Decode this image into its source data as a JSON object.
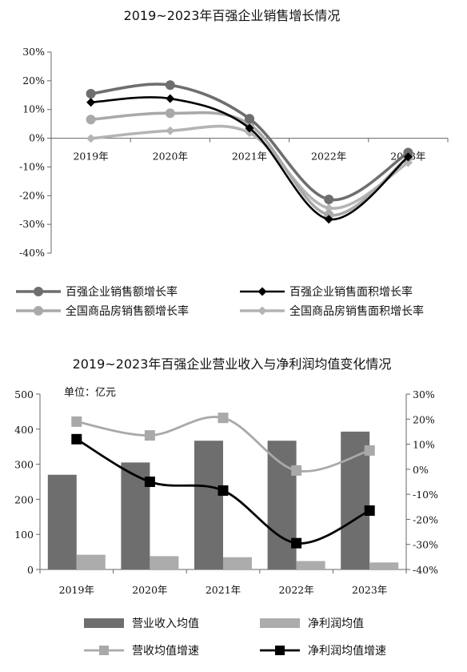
{
  "chart_data": [
    {
      "type": "line",
      "title": "2019~2023年百强企业销售增长情况",
      "categories": [
        "2019年",
        "2020年",
        "2021年",
        "2022年",
        "2023年"
      ],
      "y_ticks": [
        "30%",
        "20%",
        "10%",
        "0%",
        "-10%",
        "-20%",
        "-30%",
        "-40%"
      ],
      "ylim": [
        -40,
        30
      ],
      "grid": false,
      "legend_position": "bottom",
      "series": [
        {
          "name": "百强企业销售额增长率",
          "values": [
            15.5,
            18.5,
            6.8,
            -21.3,
            -5.0
          ],
          "color": "#6e6e6e",
          "marker": "circle"
        },
        {
          "name": "百强企业销售面积增长率",
          "values": [
            12.5,
            13.8,
            3.5,
            -28.2,
            -6.5
          ],
          "color": "#000000",
          "marker": "diamond"
        },
        {
          "name": "全国商品房销售额增长率",
          "values": [
            6.5,
            8.7,
            4.8,
            -26.7,
            -6.5
          ],
          "color": "#a9a9a9",
          "marker": "circle"
        },
        {
          "name": "全国商品房销售面积增长率",
          "values": [
            -0.1,
            2.6,
            1.9,
            -24.3,
            -8.5
          ],
          "color": "#b4b4b4",
          "marker": "diamond"
        }
      ]
    },
    {
      "type": "bar",
      "title": "2019~2023年百强企业营业收入与净利润均值变化情况",
      "unit_label": "单位：亿元",
      "categories": [
        "2019年",
        "2020年",
        "2021年",
        "2022年",
        "2023年"
      ],
      "y_left_ticks": [
        "500",
        "400",
        "300",
        "200",
        "100",
        "0"
      ],
      "y_right_ticks": [
        "30%",
        "20%",
        "10%",
        "0%",
        "-10%",
        "-20%",
        "-30%",
        "-40%"
      ],
      "ylim_left": [
        0,
        500
      ],
      "ylim_right": [
        -40,
        30
      ],
      "grid": false,
      "legend_position": "bottom",
      "bars": [
        {
          "name": "营业收入均值",
          "values": [
            270,
            305,
            367,
            367,
            393
          ],
          "color": "#6e6e6e"
        },
        {
          "name": "净利润均值",
          "values": [
            42,
            38,
            35,
            24,
            20
          ],
          "color": "#acacac"
        }
      ],
      "lines": [
        {
          "name": "营收均值增速",
          "values": [
            19.0,
            13.5,
            20.5,
            -0.5,
            7.5
          ],
          "color": "#a9a9a9",
          "marker": "square"
        },
        {
          "name": "净利润均值增速",
          "values": [
            12.0,
            -5.0,
            -8.5,
            -29.5,
            -16.5
          ],
          "color": "#000000",
          "marker": "square"
        }
      ]
    }
  ]
}
